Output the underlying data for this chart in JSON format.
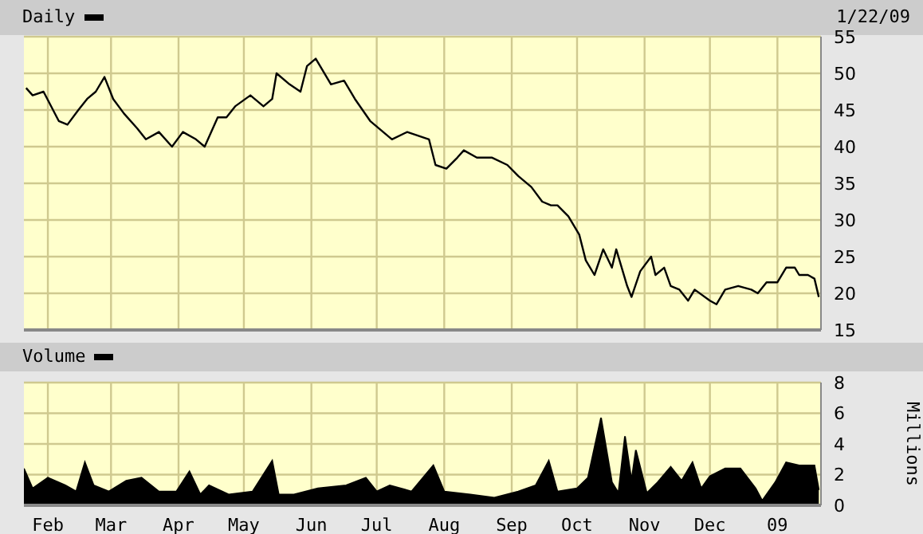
{
  "chart_data": [
    {
      "type": "line",
      "title": "Daily",
      "annotations": [
        "1/22/09"
      ],
      "grid": true,
      "tick_labels": "y",
      "xlim": [
        "2008-01-21",
        "2009-01-21"
      ],
      "xticks": [
        {
          "value": "2008-02-01",
          "label": null
        },
        {
          "value": "2008-03-01",
          "label": null
        },
        {
          "value": "2008-04-01",
          "label": null
        },
        {
          "value": "2008-05-01",
          "label": null
        },
        {
          "value": "2008-06-01",
          "label": null
        },
        {
          "value": "2008-07-01",
          "label": null
        },
        {
          "value": "2008-08-01",
          "label": null
        },
        {
          "value": "2008-09-01",
          "label": null
        },
        {
          "value": "2008-10-01",
          "label": null
        },
        {
          "value": "2008-11-01",
          "label": null
        },
        {
          "value": "2008-12-01",
          "label": null
        },
        {
          "value": "2009-01-01",
          "label": null
        }
      ],
      "ylim": [
        15,
        55
      ],
      "yticks": [
        15,
        20,
        25,
        30,
        35,
        40,
        45,
        50,
        55
      ],
      "x": [
        "2008-01-22",
        "2008-01-25",
        "2008-01-30",
        "2008-02-06",
        "2008-02-10",
        "2008-02-15",
        "2008-02-19",
        "2008-02-23",
        "2008-02-27",
        "2008-03-02",
        "2008-03-07",
        "2008-03-13",
        "2008-03-17",
        "2008-03-23",
        "2008-03-29",
        "2008-04-03",
        "2008-04-09",
        "2008-04-13",
        "2008-04-19",
        "2008-04-23",
        "2008-04-27",
        "2008-05-04",
        "2008-05-10",
        "2008-05-14",
        "2008-05-16",
        "2008-05-22",
        "2008-05-27",
        "2008-05-30",
        "2008-06-03",
        "2008-06-10",
        "2008-06-16",
        "2008-06-21",
        "2008-06-28",
        "2008-07-08",
        "2008-07-15",
        "2008-07-25",
        "2008-07-28",
        "2008-08-02",
        "2008-08-07",
        "2008-08-10",
        "2008-08-16",
        "2008-08-23",
        "2008-08-30",
        "2008-09-04",
        "2008-09-10",
        "2008-09-15",
        "2008-09-19",
        "2008-09-22",
        "2008-09-27",
        "2008-10-02",
        "2008-10-05",
        "2008-10-09",
        "2008-10-13",
        "2008-10-17",
        "2008-10-19",
        "2008-10-24",
        "2008-10-26",
        "2008-10-30",
        "2008-11-04",
        "2008-11-06",
        "2008-11-10",
        "2008-11-13",
        "2008-11-17",
        "2008-11-21",
        "2008-11-24",
        "2008-12-01",
        "2008-12-04",
        "2008-12-08",
        "2008-12-14",
        "2008-12-20",
        "2008-12-23",
        "2008-12-27",
        "2009-01-01",
        "2009-01-05",
        "2009-01-09",
        "2009-01-11",
        "2009-01-15",
        "2009-01-18",
        "2009-01-20"
      ],
      "series": [
        {
          "color": "#000000",
          "values": [
            48,
            47,
            47.5,
            43.5,
            43,
            45,
            46.5,
            47.5,
            49.5,
            46.5,
            44.5,
            42.5,
            41,
            42,
            40,
            42,
            41,
            40,
            44,
            44,
            45.5,
            47,
            45.5,
            46.5,
            50,
            48.5,
            47.5,
            51,
            52,
            48.5,
            49,
            46.5,
            43.5,
            41,
            42,
            41,
            37.5,
            37,
            38.5,
            39.5,
            38.5,
            38.5,
            37.5,
            36,
            34.5,
            32.5,
            32,
            32,
            30.5,
            28,
            24.5,
            22.5,
            26,
            23.5,
            26,
            21,
            19.5,
            23,
            25,
            22.5,
            23.5,
            21,
            20.5,
            19,
            20.5,
            19,
            18.5,
            20.5,
            21,
            20.5,
            20,
            21.5,
            21.5,
            23.5,
            23.5,
            22.5,
            22.5,
            22,
            19.5
          ]
        }
      ]
    },
    {
      "type": "area",
      "title": "Volume",
      "ylabel": "Millions",
      "grid": true,
      "xlim": [
        "2008-01-21",
        "2009-01-21"
      ],
      "xticks": [
        {
          "value": "2008-02-01",
          "label": "Feb"
        },
        {
          "value": "2008-03-01",
          "label": "Mar"
        },
        {
          "value": "2008-04-01",
          "label": "Apr"
        },
        {
          "value": "2008-05-01",
          "label": "May"
        },
        {
          "value": "2008-06-01",
          "label": "Jun"
        },
        {
          "value": "2008-07-01",
          "label": "Jul"
        },
        {
          "value": "2008-08-01",
          "label": "Aug"
        },
        {
          "value": "2008-09-01",
          "label": "Sep"
        },
        {
          "value": "2008-10-01",
          "label": "Oct"
        },
        {
          "value": "2008-11-01",
          "label": "Nov"
        },
        {
          "value": "2008-12-01",
          "label": "Dec"
        },
        {
          "value": "2009-01-01",
          "label": "09"
        }
      ],
      "ylim": [
        0,
        8
      ],
      "yticks": [
        0,
        2,
        4,
        6,
        8
      ],
      "x": [
        "2008-01-21",
        "2008-01-25",
        "2008-02-01",
        "2008-02-09",
        "2008-02-14",
        "2008-02-18",
        "2008-02-22",
        "2008-02-29",
        "2008-03-08",
        "2008-03-15",
        "2008-03-23",
        "2008-03-31",
        "2008-04-06",
        "2008-04-11",
        "2008-04-15",
        "2008-04-24",
        "2008-05-05",
        "2008-05-14",
        "2008-05-17",
        "2008-05-24",
        "2008-06-04",
        "2008-06-17",
        "2008-06-26",
        "2008-07-01",
        "2008-07-07",
        "2008-07-17",
        "2008-07-27",
        "2008-08-01",
        "2008-08-13",
        "2008-08-24",
        "2008-09-04",
        "2008-09-12",
        "2008-09-18",
        "2008-09-22",
        "2008-10-01",
        "2008-10-06",
        "2008-10-12",
        "2008-10-17",
        "2008-10-20",
        "2008-10-23",
        "2008-10-26",
        "2008-10-28",
        "2008-11-02",
        "2008-11-07",
        "2008-11-13",
        "2008-11-18",
        "2008-11-23",
        "2008-11-27",
        "2008-12-01",
        "2008-12-08",
        "2008-12-15",
        "2008-12-22",
        "2008-12-25",
        "2008-12-31",
        "2009-01-05",
        "2009-01-11",
        "2009-01-18",
        "2009-01-20"
      ],
      "series": [
        {
          "color": "#000000",
          "values": [
            2.4,
            1.1,
            1.8,
            1.3,
            0.9,
            2.8,
            1.3,
            0.9,
            1.6,
            1.8,
            0.9,
            0.9,
            2.2,
            0.7,
            1.3,
            0.7,
            0.9,
            2.9,
            0.7,
            0.7,
            1.1,
            1.3,
            1.8,
            0.9,
            1.3,
            0.9,
            2.6,
            0.9,
            0.7,
            0.5,
            0.9,
            1.3,
            2.9,
            0.9,
            1.1,
            1.8,
            5.7,
            1.5,
            0.8,
            4.5,
            1.6,
            3.6,
            0.8,
            1.5,
            2.5,
            1.6,
            2.8,
            1.1,
            1.9,
            2.4,
            2.4,
            1.1,
            0.3,
            1.5,
            2.8,
            2.6,
            2.6,
            1
          ]
        }
      ]
    }
  ]
}
